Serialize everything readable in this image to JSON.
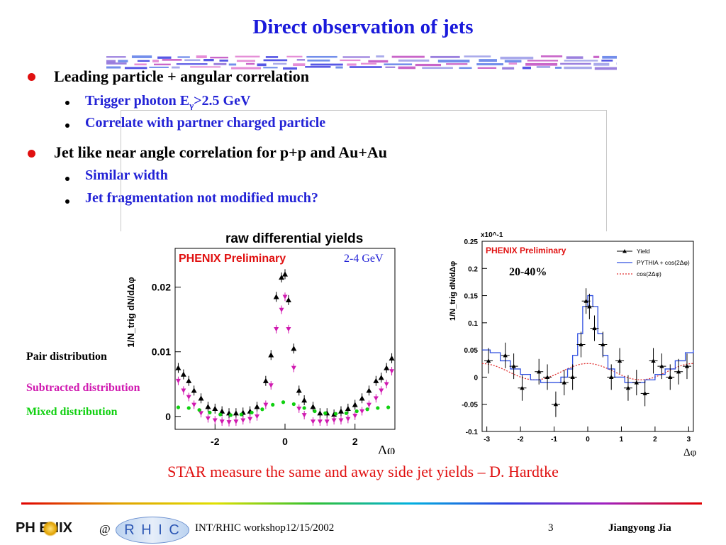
{
  "slide": {
    "title": "Direct observation of jets",
    "bullets": [
      {
        "text": "Leading particle + angular correlation",
        "sub": [
          "Trigger photon Eγ>2.5 GeV",
          "Correlate with partner charged particle"
        ]
      },
      {
        "text": "Jet like near angle correlation for p+p and Au+Au",
        "sub": [
          "Similar width",
          "Jet fragmentation not modified much?"
        ]
      }
    ],
    "sub_trigger_parts": {
      "pre": "Trigger photon E",
      "sub": "γ",
      "post": ">2.5 GeV"
    },
    "caption": "STAR measure the same and away side jet yields – D. Hardtke",
    "colors": {
      "title": "#1a1adb",
      "sub_bullets": "#2323d6",
      "caption": "#e01010",
      "bullet_dot": "#e01010"
    }
  },
  "left_legend": {
    "pair": {
      "text": "Pair distribution",
      "color": "#000000"
    },
    "subtracted": {
      "text": "Subtracted distribution",
      "color": "#d01ab0"
    },
    "mixed": {
      "text": "Mixed distribution",
      "color": "#10d010"
    }
  },
  "footer": {
    "logo_phenix": "PH ENIX",
    "at": "@",
    "logo_rhic": "R H I C",
    "workshop": "INT/RHIC workshop12/15/2002",
    "page": "3",
    "author": "Jiangyong Jia"
  },
  "chart_data": [
    {
      "type": "scatter",
      "title": "raw differential yields",
      "annotations": [
        "PHENIX Preliminary",
        "2-4 GeV"
      ],
      "ylabel": "1/N_trig dN/dΔφ",
      "xlabel": "Δφ",
      "xlim": [
        -3.14,
        3.14
      ],
      "ylim": [
        -0.002,
        0.026
      ],
      "xticks": [
        -2,
        0,
        2
      ],
      "yticks": [
        0,
        0.01,
        0.02
      ],
      "ytick_labels": [
        "0",
        "0.01",
        "0.02"
      ],
      "series": [
        {
          "name": "Pair distribution",
          "color": "#000000",
          "marker": "triangle-up",
          "x": [
            -3.05,
            -2.9,
            -2.75,
            -2.6,
            -2.4,
            -2.2,
            -2.0,
            -1.8,
            -1.6,
            -1.4,
            -1.2,
            -1.0,
            -0.8,
            -0.55,
            -0.4,
            -0.25,
            -0.1,
            0.0,
            0.1,
            0.25,
            0.4,
            0.55,
            0.8,
            1.0,
            1.2,
            1.4,
            1.6,
            1.8,
            2.0,
            2.2,
            2.4,
            2.6,
            2.75,
            2.9,
            3.05
          ],
          "y": [
            0.0075,
            0.0065,
            0.0055,
            0.004,
            0.0028,
            0.0015,
            0.0012,
            0.0008,
            0.0005,
            0.0005,
            0.0006,
            0.0008,
            0.0015,
            0.0055,
            0.0095,
            0.0185,
            0.0215,
            0.022,
            0.018,
            0.0105,
            0.004,
            0.0025,
            0.0015,
            0.0005,
            0.0005,
            0.0003,
            0.0008,
            0.0012,
            0.0018,
            0.0028,
            0.004,
            0.0055,
            0.006,
            0.0075,
            0.009
          ]
        },
        {
          "name": "Subtracted distribution",
          "color": "#d01ab0",
          "marker": "triangle-down",
          "x": [
            -3.05,
            -2.9,
            -2.75,
            -2.6,
            -2.4,
            -2.2,
            -2.0,
            -1.8,
            -1.6,
            -1.4,
            -1.2,
            -1.0,
            -0.8,
            -0.55,
            -0.4,
            -0.25,
            -0.1,
            0.0,
            0.1,
            0.25,
            0.4,
            0.55,
            0.8,
            1.0,
            1.2,
            1.4,
            1.6,
            1.8,
            2.0,
            2.2,
            2.4,
            2.6,
            2.75,
            2.9,
            3.05
          ],
          "y": [
            0.0055,
            0.004,
            0.003,
            0.0018,
            0.0005,
            -0.0003,
            -0.0006,
            -0.0008,
            -0.0009,
            -0.0008,
            -0.0006,
            -0.0004,
            0.0,
            0.0018,
            0.0048,
            0.0135,
            0.0165,
            0.0185,
            0.0135,
            0.0075,
            0.0012,
            0.0002,
            -0.0008,
            -0.0008,
            -0.0008,
            -0.0006,
            -0.0006,
            -0.0004,
            0.0001,
            0.0008,
            0.0018,
            0.0028,
            0.004,
            0.005,
            0.007
          ]
        },
        {
          "name": "Mixed distribution",
          "color": "#10d010",
          "marker": "star",
          "x": [
            -3.05,
            -2.75,
            -2.45,
            -2.15,
            -1.85,
            -1.55,
            -1.25,
            -0.95,
            -0.65,
            -0.35,
            -0.05,
            0.25,
            0.55,
            0.85,
            1.15,
            1.45,
            1.75,
            2.05,
            2.35,
            2.65,
            2.95
          ],
          "y": [
            0.0014,
            0.0013,
            0.001,
            0.0006,
            0.0003,
            0.0002,
            0.0003,
            0.0006,
            0.0011,
            0.0018,
            0.0022,
            0.0019,
            0.0013,
            0.0008,
            0.0005,
            0.0004,
            0.0005,
            0.0008,
            0.0011,
            0.0013,
            0.0014
          ]
        }
      ]
    },
    {
      "type": "line",
      "annotations": [
        "PHENIX Preliminary",
        "20-40%"
      ],
      "ylabel": "1/N_trig dN/dΔφ",
      "yscale_label": "x10^-1",
      "xlabel": "Δφ",
      "xlim": [
        -3.14,
        3.14
      ],
      "ylim": [
        -0.1,
        0.25
      ],
      "xticks": [
        -3,
        -2,
        -1,
        0,
        1,
        2,
        3
      ],
      "yticks": [
        -0.1,
        -0.05,
        0,
        0.05,
        0.1,
        0.15,
        0.2,
        0.25
      ],
      "ytick_labels": [
        "-0.1",
        "-0.05",
        "0",
        "0.05",
        "0.1",
        "0.15",
        "0.2",
        "0.25"
      ],
      "legend": {
        "position": "top-right",
        "entries": [
          "Yield",
          "PYTHIA + cos(2Δφ)",
          "cos(2Δφ)"
        ]
      },
      "series": [
        {
          "name": "Yield",
          "color": "#000000",
          "marker": "triangle-up",
          "x": [
            -2.95,
            -2.45,
            -2.2,
            -1.95,
            -1.45,
            -1.2,
            -0.95,
            -0.7,
            -0.45,
            -0.2,
            -0.05,
            0.05,
            0.2,
            0.45,
            0.7,
            0.95,
            1.2,
            1.45,
            1.7,
            1.95,
            2.2,
            2.45,
            2.7,
            2.95
          ],
          "y": [
            0.03,
            0.04,
            0.02,
            -0.02,
            0.01,
            0.0,
            -0.05,
            -0.01,
            0.0,
            0.06,
            0.14,
            0.13,
            0.09,
            0.06,
            0.0,
            0.03,
            -0.02,
            -0.01,
            -0.03,
            0.03,
            0.02,
            0.0,
            0.01,
            0.02
          ]
        },
        {
          "name": "PYTHIA + cos(2Δφ)",
          "color": "#3050e0",
          "style": "step",
          "x": [
            -3.14,
            -2.9,
            -2.6,
            -2.3,
            -2.0,
            -1.7,
            -1.4,
            -1.1,
            -0.8,
            -0.6,
            -0.45,
            -0.3,
            -0.15,
            0.0,
            0.15,
            0.3,
            0.45,
            0.6,
            0.8,
            1.1,
            1.4,
            1.7,
            2.0,
            2.3,
            2.6,
            2.9,
            3.14
          ],
          "y": [
            0.05,
            0.045,
            0.03,
            0.015,
            0.005,
            -0.005,
            -0.01,
            -0.01,
            0.0,
            0.015,
            0.04,
            0.08,
            0.13,
            0.15,
            0.13,
            0.08,
            0.04,
            0.015,
            0.0,
            -0.01,
            -0.01,
            -0.005,
            0.005,
            0.015,
            0.03,
            0.045,
            0.05
          ]
        },
        {
          "name": "cos(2Δφ)",
          "color": "#e03030",
          "style": "dotted",
          "function": "0.01 + 0.015*cos(2x)"
        }
      ]
    }
  ]
}
